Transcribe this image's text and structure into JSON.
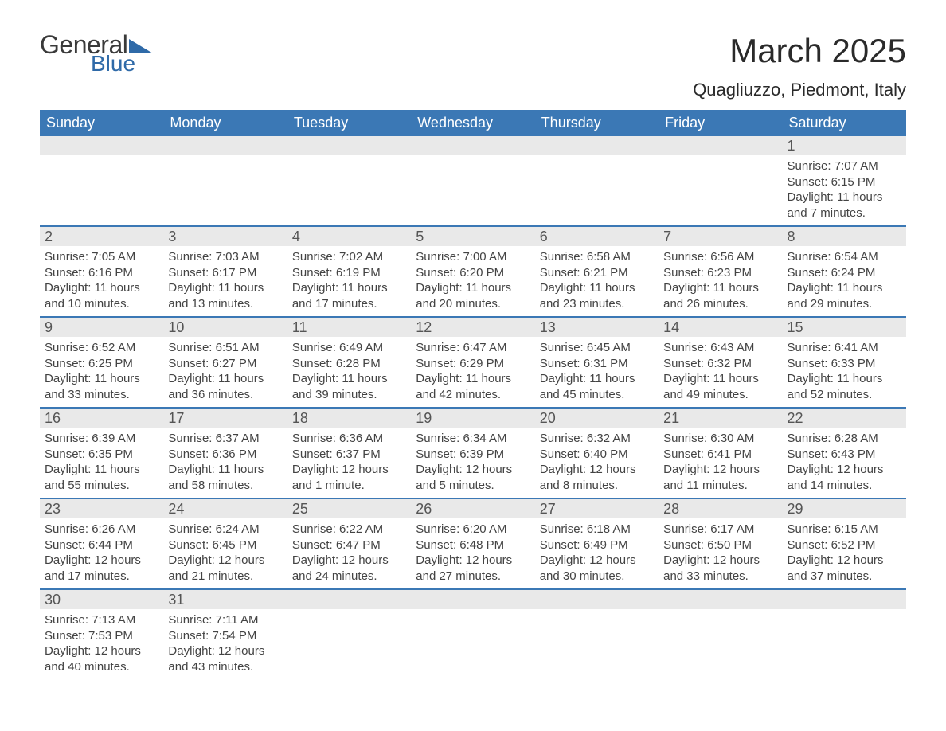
{
  "logo": {
    "text1": "General",
    "text2": "Blue"
  },
  "title": "March 2025",
  "location": "Quagliuzzo, Piedmont, Italy",
  "header_bg": "#3b78b5",
  "daynum_bg": "#e9e9e9",
  "border_color": "#3b78b5",
  "text_color": "#434343",
  "day_names": [
    "Sunday",
    "Monday",
    "Tuesday",
    "Wednesday",
    "Thursday",
    "Friday",
    "Saturday"
  ],
  "weeks": [
    [
      {
        "n": "",
        "sr": "",
        "ss": "",
        "dl": ""
      },
      {
        "n": "",
        "sr": "",
        "ss": "",
        "dl": ""
      },
      {
        "n": "",
        "sr": "",
        "ss": "",
        "dl": ""
      },
      {
        "n": "",
        "sr": "",
        "ss": "",
        "dl": ""
      },
      {
        "n": "",
        "sr": "",
        "ss": "",
        "dl": ""
      },
      {
        "n": "",
        "sr": "",
        "ss": "",
        "dl": ""
      },
      {
        "n": "1",
        "sr": "Sunrise: 7:07 AM",
        "ss": "Sunset: 6:15 PM",
        "dl": "Daylight: 11 hours and 7 minutes."
      }
    ],
    [
      {
        "n": "2",
        "sr": "Sunrise: 7:05 AM",
        "ss": "Sunset: 6:16 PM",
        "dl": "Daylight: 11 hours and 10 minutes."
      },
      {
        "n": "3",
        "sr": "Sunrise: 7:03 AM",
        "ss": "Sunset: 6:17 PM",
        "dl": "Daylight: 11 hours and 13 minutes."
      },
      {
        "n": "4",
        "sr": "Sunrise: 7:02 AM",
        "ss": "Sunset: 6:19 PM",
        "dl": "Daylight: 11 hours and 17 minutes."
      },
      {
        "n": "5",
        "sr": "Sunrise: 7:00 AM",
        "ss": "Sunset: 6:20 PM",
        "dl": "Daylight: 11 hours and 20 minutes."
      },
      {
        "n": "6",
        "sr": "Sunrise: 6:58 AM",
        "ss": "Sunset: 6:21 PM",
        "dl": "Daylight: 11 hours and 23 minutes."
      },
      {
        "n": "7",
        "sr": "Sunrise: 6:56 AM",
        "ss": "Sunset: 6:23 PM",
        "dl": "Daylight: 11 hours and 26 minutes."
      },
      {
        "n": "8",
        "sr": "Sunrise: 6:54 AM",
        "ss": "Sunset: 6:24 PM",
        "dl": "Daylight: 11 hours and 29 minutes."
      }
    ],
    [
      {
        "n": "9",
        "sr": "Sunrise: 6:52 AM",
        "ss": "Sunset: 6:25 PM",
        "dl": "Daylight: 11 hours and 33 minutes."
      },
      {
        "n": "10",
        "sr": "Sunrise: 6:51 AM",
        "ss": "Sunset: 6:27 PM",
        "dl": "Daylight: 11 hours and 36 minutes."
      },
      {
        "n": "11",
        "sr": "Sunrise: 6:49 AM",
        "ss": "Sunset: 6:28 PM",
        "dl": "Daylight: 11 hours and 39 minutes."
      },
      {
        "n": "12",
        "sr": "Sunrise: 6:47 AM",
        "ss": "Sunset: 6:29 PM",
        "dl": "Daylight: 11 hours and 42 minutes."
      },
      {
        "n": "13",
        "sr": "Sunrise: 6:45 AM",
        "ss": "Sunset: 6:31 PM",
        "dl": "Daylight: 11 hours and 45 minutes."
      },
      {
        "n": "14",
        "sr": "Sunrise: 6:43 AM",
        "ss": "Sunset: 6:32 PM",
        "dl": "Daylight: 11 hours and 49 minutes."
      },
      {
        "n": "15",
        "sr": "Sunrise: 6:41 AM",
        "ss": "Sunset: 6:33 PM",
        "dl": "Daylight: 11 hours and 52 minutes."
      }
    ],
    [
      {
        "n": "16",
        "sr": "Sunrise: 6:39 AM",
        "ss": "Sunset: 6:35 PM",
        "dl": "Daylight: 11 hours and 55 minutes."
      },
      {
        "n": "17",
        "sr": "Sunrise: 6:37 AM",
        "ss": "Sunset: 6:36 PM",
        "dl": "Daylight: 11 hours and 58 minutes."
      },
      {
        "n": "18",
        "sr": "Sunrise: 6:36 AM",
        "ss": "Sunset: 6:37 PM",
        "dl": "Daylight: 12 hours and 1 minute."
      },
      {
        "n": "19",
        "sr": "Sunrise: 6:34 AM",
        "ss": "Sunset: 6:39 PM",
        "dl": "Daylight: 12 hours and 5 minutes."
      },
      {
        "n": "20",
        "sr": "Sunrise: 6:32 AM",
        "ss": "Sunset: 6:40 PM",
        "dl": "Daylight: 12 hours and 8 minutes."
      },
      {
        "n": "21",
        "sr": "Sunrise: 6:30 AM",
        "ss": "Sunset: 6:41 PM",
        "dl": "Daylight: 12 hours and 11 minutes."
      },
      {
        "n": "22",
        "sr": "Sunrise: 6:28 AM",
        "ss": "Sunset: 6:43 PM",
        "dl": "Daylight: 12 hours and 14 minutes."
      }
    ],
    [
      {
        "n": "23",
        "sr": "Sunrise: 6:26 AM",
        "ss": "Sunset: 6:44 PM",
        "dl": "Daylight: 12 hours and 17 minutes."
      },
      {
        "n": "24",
        "sr": "Sunrise: 6:24 AM",
        "ss": "Sunset: 6:45 PM",
        "dl": "Daylight: 12 hours and 21 minutes."
      },
      {
        "n": "25",
        "sr": "Sunrise: 6:22 AM",
        "ss": "Sunset: 6:47 PM",
        "dl": "Daylight: 12 hours and 24 minutes."
      },
      {
        "n": "26",
        "sr": "Sunrise: 6:20 AM",
        "ss": "Sunset: 6:48 PM",
        "dl": "Daylight: 12 hours and 27 minutes."
      },
      {
        "n": "27",
        "sr": "Sunrise: 6:18 AM",
        "ss": "Sunset: 6:49 PM",
        "dl": "Daylight: 12 hours and 30 minutes."
      },
      {
        "n": "28",
        "sr": "Sunrise: 6:17 AM",
        "ss": "Sunset: 6:50 PM",
        "dl": "Daylight: 12 hours and 33 minutes."
      },
      {
        "n": "29",
        "sr": "Sunrise: 6:15 AM",
        "ss": "Sunset: 6:52 PM",
        "dl": "Daylight: 12 hours and 37 minutes."
      }
    ],
    [
      {
        "n": "30",
        "sr": "Sunrise: 7:13 AM",
        "ss": "Sunset: 7:53 PM",
        "dl": "Daylight: 12 hours and 40 minutes."
      },
      {
        "n": "31",
        "sr": "Sunrise: 7:11 AM",
        "ss": "Sunset: 7:54 PM",
        "dl": "Daylight: 12 hours and 43 minutes."
      },
      {
        "n": "",
        "sr": "",
        "ss": "",
        "dl": ""
      },
      {
        "n": "",
        "sr": "",
        "ss": "",
        "dl": ""
      },
      {
        "n": "",
        "sr": "",
        "ss": "",
        "dl": ""
      },
      {
        "n": "",
        "sr": "",
        "ss": "",
        "dl": ""
      },
      {
        "n": "",
        "sr": "",
        "ss": "",
        "dl": ""
      }
    ]
  ]
}
